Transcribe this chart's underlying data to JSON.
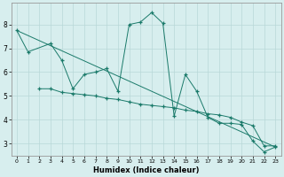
{
  "xlabel": "Humidex (Indice chaleur)",
  "background_color": "#d7eeee",
  "grid_color": "#b8d8d8",
  "line_color": "#1a7a6a",
  "xlim": [
    -0.5,
    23.5
  ],
  "ylim": [
    2.5,
    8.9
  ],
  "xticks": [
    0,
    1,
    2,
    3,
    4,
    5,
    6,
    7,
    8,
    9,
    10,
    11,
    12,
    13,
    14,
    15,
    16,
    17,
    18,
    19,
    20,
    21,
    22,
    23
  ],
  "yticks": [
    3,
    4,
    5,
    6,
    7,
    8
  ],
  "series1_x": [
    0,
    1,
    3,
    4,
    5,
    6,
    7,
    8,
    9,
    10,
    11,
    12,
    13,
    14,
    15,
    16,
    17,
    18,
    19,
    20,
    21,
    22,
    23
  ],
  "series1_y": [
    7.75,
    6.85,
    7.2,
    6.5,
    5.3,
    5.9,
    6.0,
    6.15,
    5.2,
    8.0,
    8.1,
    8.5,
    8.05,
    4.15,
    5.9,
    5.2,
    4.1,
    3.85,
    3.85,
    3.8,
    3.1,
    2.65,
    2.85
  ],
  "series2_x": [
    2,
    3,
    4,
    5,
    6,
    7,
    8,
    9,
    10,
    11,
    12,
    13,
    14,
    15,
    16,
    17,
    18,
    19,
    20,
    21,
    22,
    23
  ],
  "series2_y": [
    5.3,
    5.3,
    5.15,
    5.1,
    5.05,
    5.0,
    4.9,
    4.85,
    4.75,
    4.65,
    4.6,
    4.55,
    4.5,
    4.4,
    4.35,
    4.25,
    4.2,
    4.1,
    3.9,
    3.75,
    2.9,
    2.9
  ],
  "series3_x": [
    0,
    23
  ],
  "series3_y": [
    7.75,
    2.85
  ]
}
